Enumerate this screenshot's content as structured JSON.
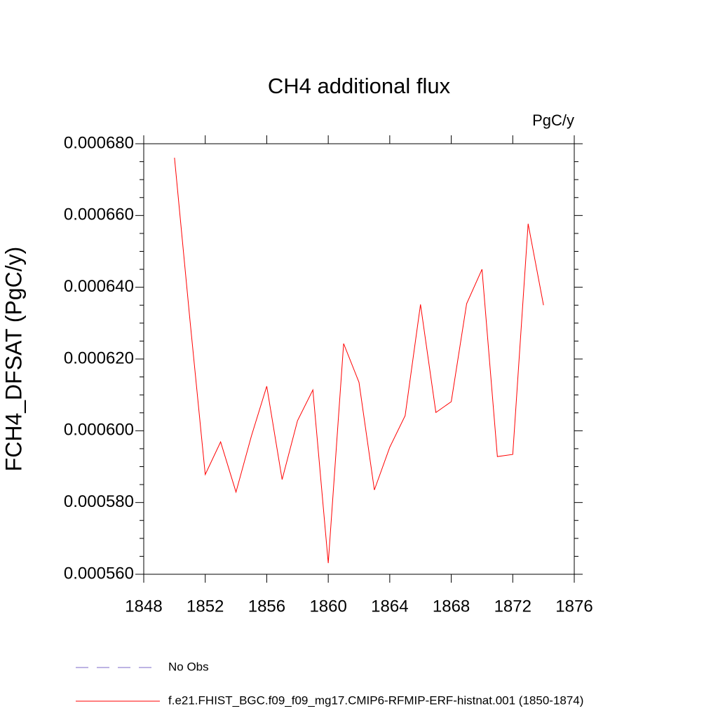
{
  "chart_data": {
    "type": "line",
    "title": "CH4 additional flux",
    "units": "PgC/y",
    "y_label": "FCH4_DFSAT  (PgC/y)",
    "x": [
      1850,
      1851,
      1852,
      1853,
      1854,
      1855,
      1856,
      1857,
      1858,
      1859,
      1860,
      1861,
      1862,
      1863,
      1864,
      1865,
      1866,
      1867,
      1868,
      1869,
      1870,
      1871,
      1872,
      1873,
      1874
    ],
    "series": [
      {
        "name": "No Obs",
        "color": "#7b68c8",
        "dashed": true,
        "values": [
          null,
          null,
          null,
          null,
          null,
          null,
          null,
          null,
          null,
          null,
          null,
          null,
          null,
          null,
          null,
          null,
          null,
          null,
          null,
          null,
          null,
          null,
          null,
          null,
          null
        ]
      },
      {
        "name": "f.e21.FHIST_BGC.f09_f09_mg17.CMIP6-RFMIP-ERF-histnat.001 (1850-1874)",
        "color": "#ff0000",
        "dashed": false,
        "values": [
          0.0006761,
          0.0006311,
          0.0005878,
          0.0005969,
          0.0005829,
          0.0005985,
          0.0006124,
          0.0005864,
          0.0006028,
          0.0006114,
          0.0005631,
          0.0006243,
          0.0006135,
          0.0005835,
          0.0005954,
          0.0006042,
          0.0006352,
          0.0006051,
          0.0006081,
          0.0006354,
          0.000645,
          0.0005928,
          0.0005934,
          0.0006577,
          0.000635
        ]
      }
    ],
    "xlim": [
      1848,
      1876
    ],
    "xticks": [
      1848,
      1852,
      1856,
      1860,
      1864,
      1868,
      1872,
      1876
    ],
    "ylim": [
      0.00056,
      0.00068
    ],
    "yticks": [
      {
        "value": 0.00056,
        "label": "0.000560"
      },
      {
        "value": 0.00058,
        "label": "0.000580"
      },
      {
        "value": 0.0006,
        "label": "0.000600"
      },
      {
        "value": 0.00062,
        "label": "0.000620"
      },
      {
        "value": 0.00064,
        "label": "0.000640"
      },
      {
        "value": 0.00066,
        "label": "0.000660"
      },
      {
        "value": 0.00068,
        "label": "0.000680"
      }
    ],
    "grid": false
  }
}
